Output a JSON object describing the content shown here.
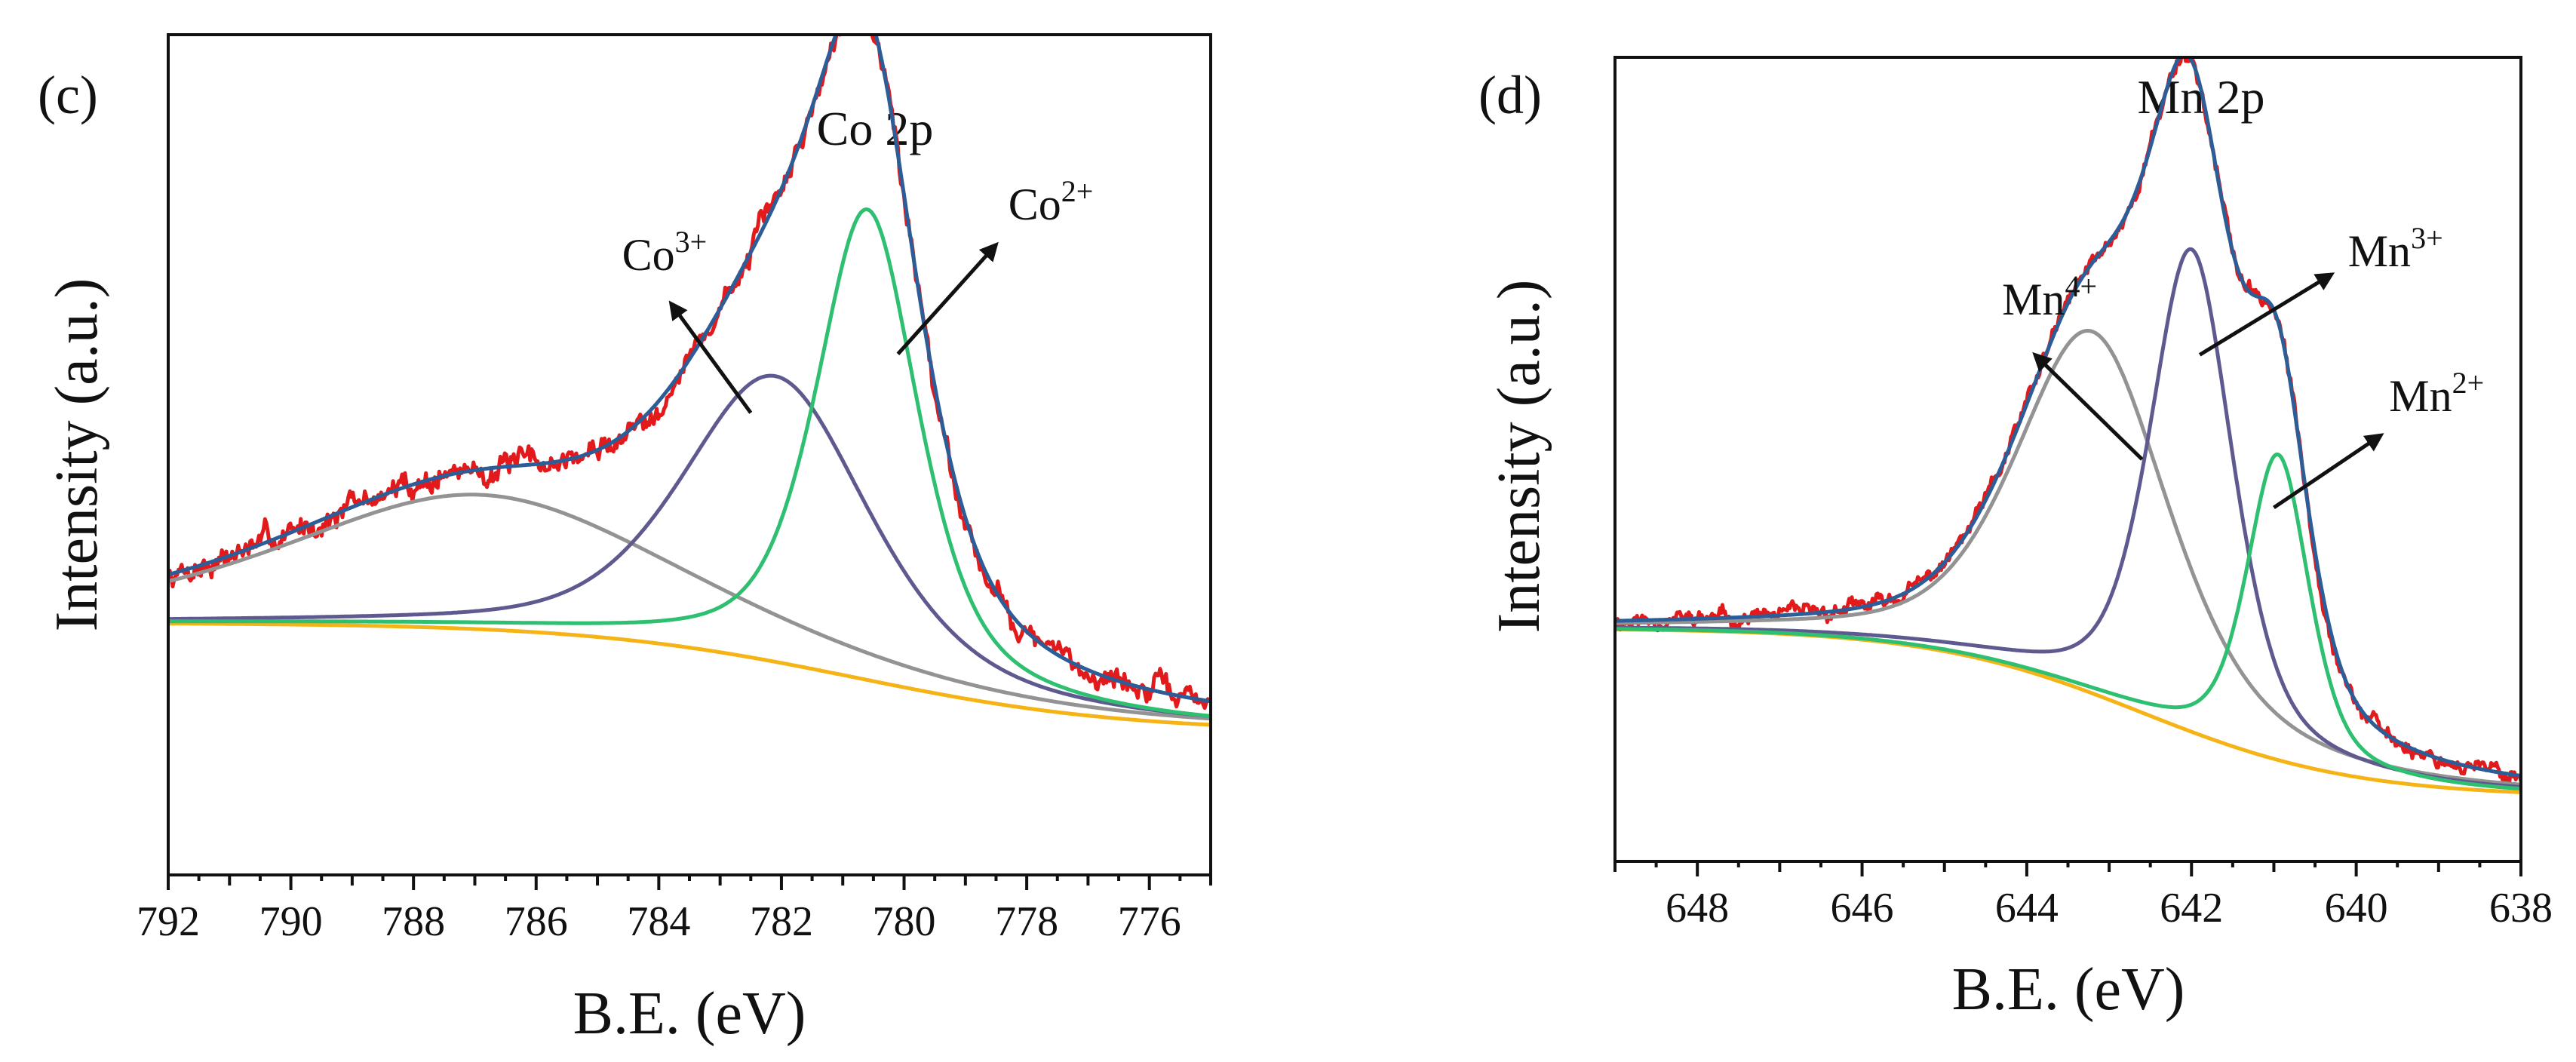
{
  "colors": {
    "experimental": "#e31a1c",
    "envelope": "#2c5d96",
    "peak_high": "#939393",
    "peak_mid": "#5e5a90",
    "peak_low": "#2fbf71",
    "background": "#f5b316"
  },
  "chart_data": [
    {
      "id": "c",
      "type": "line",
      "panel_tag": "(c)",
      "title": "Co 2p",
      "xlabel": "B.E. (eV)",
      "ylabel": "Intensity (a.u.)",
      "xlim": [
        792,
        775
      ],
      "ylim": [
        0,
        100
      ],
      "x_ticks": [
        792,
        790,
        788,
        786,
        784,
        782,
        780,
        778,
        776
      ],
      "tick_labels": [
        "792",
        "790",
        "788",
        "786",
        "784",
        "782",
        "780",
        "778",
        "776"
      ],
      "legend": "none",
      "series": [
        {
          "name": "background",
          "kind": "shirley",
          "color_key": "background",
          "start": 30,
          "end": 17,
          "center": 780.8,
          "width": 2.2
        },
        {
          "name": "satellite",
          "kind": "peak",
          "color_key": "peak_high",
          "base": "background",
          "center": 786.9,
          "height": 16,
          "fwhm": 7.5,
          "tail": 0.5
        },
        {
          "name": "Co3+",
          "kind": "peak",
          "color_key": "peak_mid",
          "base": "background",
          "center": 782.1,
          "height": 34,
          "fwhm": 3.6,
          "tail": 0.5
        },
        {
          "name": "Co2+",
          "kind": "peak",
          "color_key": "peak_low",
          "base": "background",
          "center": 780.6,
          "height": 56,
          "fwhm": 2.0,
          "tail": 0.6
        },
        {
          "name": "envelope",
          "kind": "sum",
          "color_key": "envelope"
        },
        {
          "name": "experimental",
          "kind": "noisy",
          "color_key": "experimental",
          "noise": 1.4,
          "seed": 7
        }
      ],
      "annotations": [
        {
          "base": "Co",
          "sup": "3+",
          "from_x": 782.5,
          "from_y": 55,
          "to_x": 783.8,
          "to_y": 68,
          "text_x": 784.6,
          "text_y": 72
        },
        {
          "base": "Co",
          "sup": "2+",
          "from_x": 780.1,
          "from_y": 62,
          "to_x": 778.5,
          "to_y": 75,
          "text_x": 778.3,
          "text_y": 78
        }
      ]
    },
    {
      "id": "d",
      "type": "line",
      "panel_tag": "(d)",
      "title": "Mn 2p",
      "xlabel": "B.E. (eV)",
      "ylabel": "Intensity (a.u.)",
      "xlim": [
        649,
        638
      ],
      "ylim": [
        0,
        100
      ],
      "x_ticks": [
        648,
        646,
        644,
        642,
        640,
        638
      ],
      "tick_labels": [
        "648",
        "646",
        "644",
        "642",
        "640",
        "638"
      ],
      "legend": "none",
      "series": [
        {
          "name": "background",
          "kind": "shirley",
          "color_key": "background",
          "start": 29,
          "end": 8,
          "center": 642.6,
          "width": 1.3
        },
        {
          "name": "Mn4+",
          "kind": "peak",
          "color_key": "peak_high",
          "base": "background",
          "center": 643.2,
          "height": 45,
          "fwhm": 2.2,
          "tail": 0.5
        },
        {
          "name": "Mn3+",
          "kind": "peak",
          "color_key": "peak_mid",
          "base": "background",
          "center": 642.0,
          "height": 60,
          "fwhm": 1.2,
          "tail": 0.5
        },
        {
          "name": "Mn2+",
          "kind": "peak",
          "color_key": "peak_low",
          "base": "background",
          "center": 640.95,
          "height": 38,
          "fwhm": 0.9,
          "tail": 0.5
        },
        {
          "name": "envelope",
          "kind": "sum",
          "color_key": "envelope"
        },
        {
          "name": "experimental",
          "kind": "noisy",
          "color_key": "experimental",
          "noise": 0.9,
          "seed": 11
        }
      ],
      "annotations": [
        {
          "base": "Mn",
          "sup": "4+",
          "from_x": 642.6,
          "from_y": 50,
          "to_x": 643.9,
          "to_y": 63,
          "text_x": 644.3,
          "text_y": 68
        },
        {
          "base": "Mn",
          "sup": "3+",
          "from_x": 641.9,
          "from_y": 63,
          "to_x": 640.3,
          "to_y": 73,
          "text_x": 640.1,
          "text_y": 74
        },
        {
          "base": "Mn",
          "sup": "2+",
          "from_x": 641.0,
          "from_y": 44,
          "to_x": 639.7,
          "to_y": 53,
          "text_x": 639.6,
          "text_y": 56
        }
      ]
    }
  ]
}
